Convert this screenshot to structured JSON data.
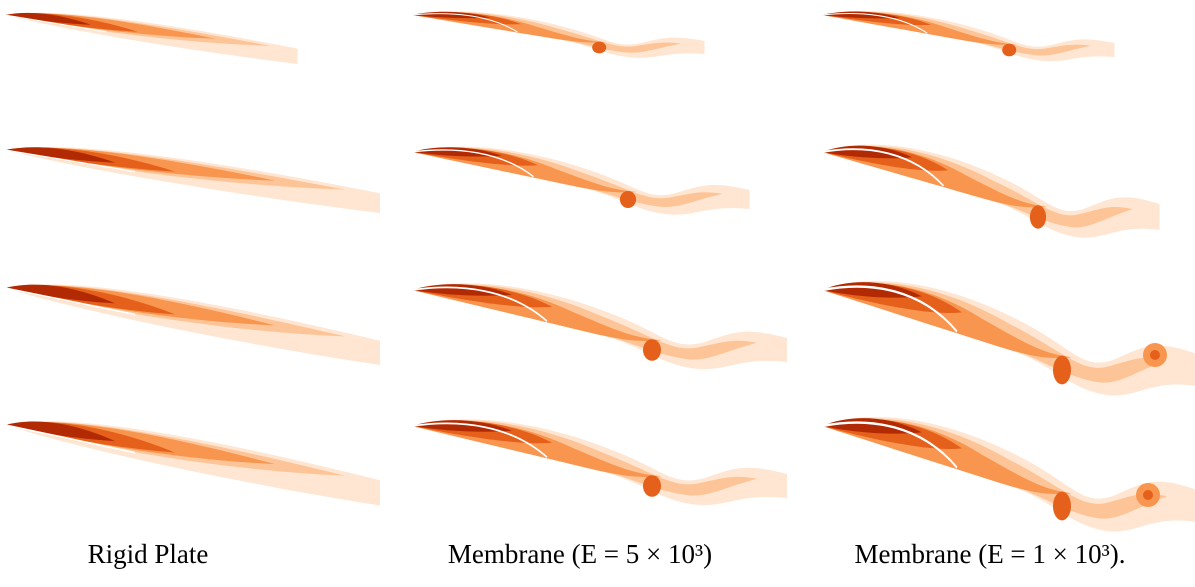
{
  "captions": [
    "Rigid Plate",
    "Membrane (E = 5 × 10³)",
    "Membrane (E = 1 × 10³)."
  ]
}
